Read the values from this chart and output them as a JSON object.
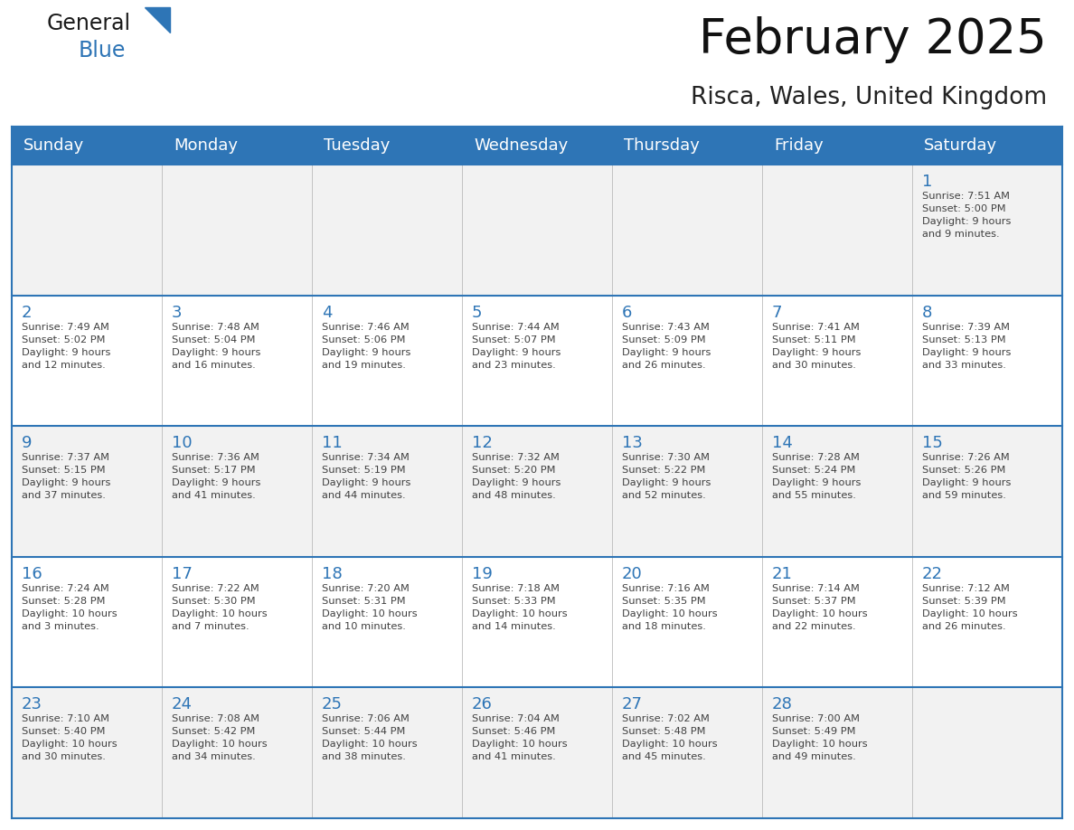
{
  "title": "February 2025",
  "subtitle": "Risca, Wales, United Kingdom",
  "header_bg": "#2E75B6",
  "header_text_color": "#FFFFFF",
  "cell_bg_odd": "#F2F2F2",
  "cell_bg_even": "#FFFFFF",
  "day_text_color": "#2E75B6",
  "info_text_color": "#404040",
  "border_color": "#2E75B6",
  "grid_line_color": "#BBBBBB",
  "days_of_week": [
    "Sunday",
    "Monday",
    "Tuesday",
    "Wednesday",
    "Thursday",
    "Friday",
    "Saturday"
  ],
  "weeks": [
    [
      {
        "day": null,
        "info": ""
      },
      {
        "day": null,
        "info": ""
      },
      {
        "day": null,
        "info": ""
      },
      {
        "day": null,
        "info": ""
      },
      {
        "day": null,
        "info": ""
      },
      {
        "day": null,
        "info": ""
      },
      {
        "day": 1,
        "info": "Sunrise: 7:51 AM\nSunset: 5:00 PM\nDaylight: 9 hours\nand 9 minutes."
      }
    ],
    [
      {
        "day": 2,
        "info": "Sunrise: 7:49 AM\nSunset: 5:02 PM\nDaylight: 9 hours\nand 12 minutes."
      },
      {
        "day": 3,
        "info": "Sunrise: 7:48 AM\nSunset: 5:04 PM\nDaylight: 9 hours\nand 16 minutes."
      },
      {
        "day": 4,
        "info": "Sunrise: 7:46 AM\nSunset: 5:06 PM\nDaylight: 9 hours\nand 19 minutes."
      },
      {
        "day": 5,
        "info": "Sunrise: 7:44 AM\nSunset: 5:07 PM\nDaylight: 9 hours\nand 23 minutes."
      },
      {
        "day": 6,
        "info": "Sunrise: 7:43 AM\nSunset: 5:09 PM\nDaylight: 9 hours\nand 26 minutes."
      },
      {
        "day": 7,
        "info": "Sunrise: 7:41 AM\nSunset: 5:11 PM\nDaylight: 9 hours\nand 30 minutes."
      },
      {
        "day": 8,
        "info": "Sunrise: 7:39 AM\nSunset: 5:13 PM\nDaylight: 9 hours\nand 33 minutes."
      }
    ],
    [
      {
        "day": 9,
        "info": "Sunrise: 7:37 AM\nSunset: 5:15 PM\nDaylight: 9 hours\nand 37 minutes."
      },
      {
        "day": 10,
        "info": "Sunrise: 7:36 AM\nSunset: 5:17 PM\nDaylight: 9 hours\nand 41 minutes."
      },
      {
        "day": 11,
        "info": "Sunrise: 7:34 AM\nSunset: 5:19 PM\nDaylight: 9 hours\nand 44 minutes."
      },
      {
        "day": 12,
        "info": "Sunrise: 7:32 AM\nSunset: 5:20 PM\nDaylight: 9 hours\nand 48 minutes."
      },
      {
        "day": 13,
        "info": "Sunrise: 7:30 AM\nSunset: 5:22 PM\nDaylight: 9 hours\nand 52 minutes."
      },
      {
        "day": 14,
        "info": "Sunrise: 7:28 AM\nSunset: 5:24 PM\nDaylight: 9 hours\nand 55 minutes."
      },
      {
        "day": 15,
        "info": "Sunrise: 7:26 AM\nSunset: 5:26 PM\nDaylight: 9 hours\nand 59 minutes."
      }
    ],
    [
      {
        "day": 16,
        "info": "Sunrise: 7:24 AM\nSunset: 5:28 PM\nDaylight: 10 hours\nand 3 minutes."
      },
      {
        "day": 17,
        "info": "Sunrise: 7:22 AM\nSunset: 5:30 PM\nDaylight: 10 hours\nand 7 minutes."
      },
      {
        "day": 18,
        "info": "Sunrise: 7:20 AM\nSunset: 5:31 PM\nDaylight: 10 hours\nand 10 minutes."
      },
      {
        "day": 19,
        "info": "Sunrise: 7:18 AM\nSunset: 5:33 PM\nDaylight: 10 hours\nand 14 minutes."
      },
      {
        "day": 20,
        "info": "Sunrise: 7:16 AM\nSunset: 5:35 PM\nDaylight: 10 hours\nand 18 minutes."
      },
      {
        "day": 21,
        "info": "Sunrise: 7:14 AM\nSunset: 5:37 PM\nDaylight: 10 hours\nand 22 minutes."
      },
      {
        "day": 22,
        "info": "Sunrise: 7:12 AM\nSunset: 5:39 PM\nDaylight: 10 hours\nand 26 minutes."
      }
    ],
    [
      {
        "day": 23,
        "info": "Sunrise: 7:10 AM\nSunset: 5:40 PM\nDaylight: 10 hours\nand 30 minutes."
      },
      {
        "day": 24,
        "info": "Sunrise: 7:08 AM\nSunset: 5:42 PM\nDaylight: 10 hours\nand 34 minutes."
      },
      {
        "day": 25,
        "info": "Sunrise: 7:06 AM\nSunset: 5:44 PM\nDaylight: 10 hours\nand 38 minutes."
      },
      {
        "day": 26,
        "info": "Sunrise: 7:04 AM\nSunset: 5:46 PM\nDaylight: 10 hours\nand 41 minutes."
      },
      {
        "day": 27,
        "info": "Sunrise: 7:02 AM\nSunset: 5:48 PM\nDaylight: 10 hours\nand 45 minutes."
      },
      {
        "day": 28,
        "info": "Sunrise: 7:00 AM\nSunset: 5:49 PM\nDaylight: 10 hours\nand 49 minutes."
      },
      {
        "day": null,
        "info": ""
      }
    ]
  ],
  "logo_color_general": "#1A1A1A",
  "logo_color_blue": "#2E75B6",
  "logo_triangle_color": "#2E75B6",
  "title_fontsize": 38,
  "subtitle_fontsize": 19,
  "header_fontsize": 13,
  "day_fontsize": 13,
  "info_fontsize": 8.2
}
